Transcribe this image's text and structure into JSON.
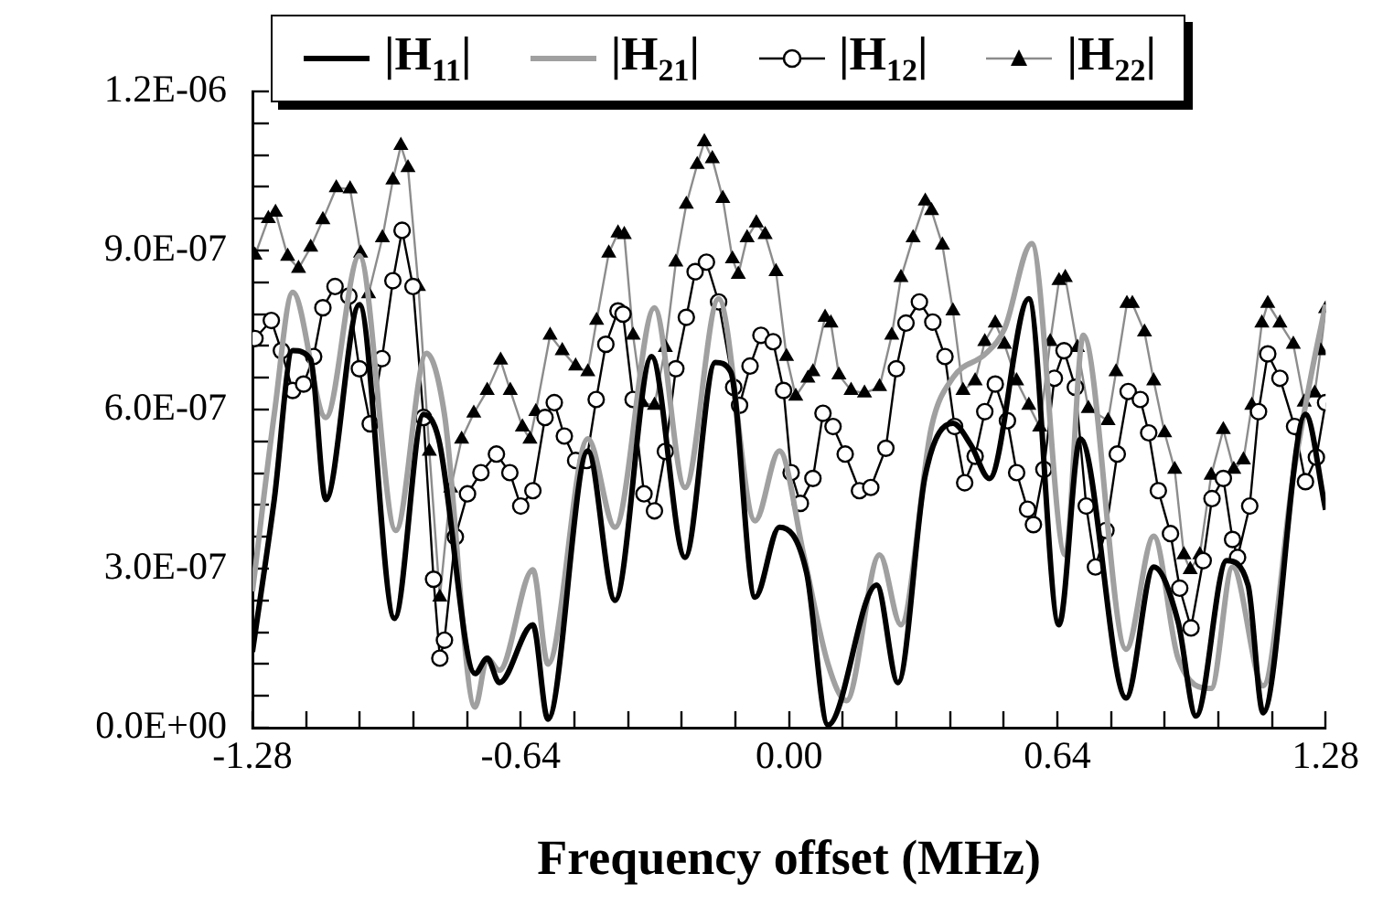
{
  "chart_data": {
    "type": "line",
    "xlabel": "Frequency offset (MHz)",
    "legend": "top",
    "grid": false,
    "xlim": [
      -1.28,
      1.28
    ],
    "xticks": [
      -1.28,
      {
        "value": -1.152,
        "label": null
      },
      {
        "value": -1.024,
        "label": null
      },
      {
        "value": -0.896,
        "label": null
      },
      {
        "value": -0.768,
        "label": null
      },
      -0.64,
      {
        "value": -0.512,
        "label": null
      },
      {
        "value": -0.384,
        "label": null
      },
      {
        "value": -0.256,
        "label": null
      },
      {
        "value": -0.128,
        "label": null
      },
      {
        "value": 0,
        "label": "0.00"
      },
      {
        "value": 0.128,
        "label": null
      },
      {
        "value": 0.256,
        "label": null
      },
      {
        "value": 0.384,
        "label": null
      },
      {
        "value": 0.512,
        "label": null
      },
      0.64,
      {
        "value": 0.768,
        "label": null
      },
      {
        "value": 0.896,
        "label": null
      },
      {
        "value": 1.024,
        "label": null
      },
      {
        "value": 1.152,
        "label": null
      },
      1.28
    ],
    "ylim": [
      0,
      1.2e-06
    ],
    "yticks": [
      {
        "value": 0,
        "label": "0.0E+00"
      },
      {
        "value": 6e-08,
        "label": null
      },
      {
        "value": 1.2e-07,
        "label": null
      },
      {
        "value": 1.8e-07,
        "label": null
      },
      {
        "value": 2.4e-07,
        "label": null
      },
      {
        "value": 3e-07,
        "label": "3.0E-07"
      },
      {
        "value": 3.6e-07,
        "label": null
      },
      {
        "value": 4.2e-07,
        "label": null
      },
      {
        "value": 4.8e-07,
        "label": null
      },
      {
        "value": 5.4e-07,
        "label": null
      },
      {
        "value": 6e-07,
        "label": "6.0E-07"
      },
      {
        "value": 6.6e-07,
        "label": null
      },
      {
        "value": 7.2e-07,
        "label": null
      },
      {
        "value": 7.8e-07,
        "label": null
      },
      {
        "value": 8.4e-07,
        "label": null
      },
      {
        "value": 9e-07,
        "label": "9.0E-07"
      },
      {
        "value": 9.6e-07,
        "label": null
      },
      {
        "value": 1.02e-06,
        "label": null
      },
      {
        "value": 1.08e-06,
        "label": null
      },
      {
        "value": 1.14e-06,
        "label": null
      },
      {
        "value": 1.2e-06,
        "label": "1.2E-06"
      }
    ],
    "series": [
      {
        "name": "|H$_{11}$|",
        "color": "#000000",
        "marker": "none",
        "x": [
          -1.28,
          -1.228,
          -1.184,
          -1.141,
          -1.105,
          -1.025,
          -0.941,
          -0.872,
          -0.836,
          -0.749,
          -0.72,
          -0.691,
          -0.611,
          -0.575,
          -0.48,
          -0.415,
          -0.328,
          -0.248,
          -0.176,
          -0.139,
          -0.081,
          -0.023,
          0.042,
          0.093,
          0.209,
          0.26,
          0.325,
          0.391,
          0.434,
          0.478,
          0.572,
          0.644,
          0.695,
          0.804,
          0.87,
          0.928,
          0.971,
          1.044,
          1.095,
          1.131,
          1.232,
          1.28
        ],
        "values": [
          1.43e-07,
          4.3e-07,
          7.11e-07,
          6.94e-07,
          4.3e-07,
          7.98e-07,
          2.06e-07,
          5.91e-07,
          5.45e-07,
          1.02e-07,
          1.31e-07,
          8.5e-08,
          1.94e-07,
          1.6e-08,
          5.22e-07,
          2.4e-07,
          7e-07,
          3.21e-07,
          6.89e-07,
          6.71e-07,
          2.46e-07,
          3.78e-07,
          2.92e-07,
          5e-09,
          2.69e-07,
          8.5e-08,
          4.76e-07,
          5.74e-07,
          5.33e-07,
          4.7e-07,
          8.09e-07,
          1.94e-07,
          5.45e-07,
          5.6e-08,
          3.03e-07,
          2e-07,
          2.2e-08,
          3.15e-07,
          2.69e-07,
          2.8e-08,
          5.91e-07,
          4.11e-07
        ]
      },
      {
        "name": "|H$_{21}$|",
        "color": "#a0a0a0",
        "marker": "none",
        "x": [
          -1.28,
          -1.228,
          -1.184,
          -1.105,
          -1.025,
          -0.938,
          -0.865,
          -0.822,
          -0.749,
          -0.72,
          -0.691,
          -0.611,
          -0.575,
          -0.48,
          -0.415,
          -0.321,
          -0.248,
          -0.168,
          -0.081,
          -0.023,
          0.035,
          0.093,
          0.137,
          0.216,
          0.267,
          0.34,
          0.391,
          0.47,
          0.514,
          0.579,
          0.659,
          0.702,
          0.804,
          0.87,
          0.928,
          1.007,
          1.058,
          1.131,
          1.203,
          1.247,
          1.28
        ],
        "values": [
          2.57e-07,
          5.91e-07,
          8.21e-07,
          5.85e-07,
          8.9e-07,
          3.72e-07,
          7.06e-07,
          5.91e-07,
          3.9e-08,
          1.31e-07,
          1.08e-07,
          2.98e-07,
          1.2e-07,
          5.45e-07,
          3.78e-07,
          7.92e-07,
          4.53e-07,
          8.09e-07,
          3.9e-07,
          5.22e-07,
          3.26e-07,
          1.2e-07,
          5.1e-08,
          3.26e-07,
          1.94e-07,
          5.68e-07,
          6.6e-07,
          7.06e-07,
          7.52e-07,
          9.13e-07,
          3.26e-07,
          7.4e-07,
          1.48e-07,
          3.61e-07,
          1.31e-07,
          7.4e-08,
          3.03e-07,
          7.9e-08,
          4.76e-07,
          6.71e-07,
          7.98e-07
        ]
      },
      {
        "name": "|H$_{12}$|",
        "color": "#000000",
        "marker": "circle",
        "x": [
          -1.274,
          -1.235,
          -1.211,
          -1.184,
          -1.158,
          -1.134,
          -1.112,
          -1.083,
          -1.05,
          -1.025,
          -0.999,
          -0.971,
          -0.945,
          -0.923,
          -0.897,
          -0.872,
          -0.848,
          -0.833,
          -0.822,
          -0.796,
          -0.767,
          -0.735,
          -0.698,
          -0.666,
          -0.64,
          -0.611,
          -0.582,
          -0.56,
          -0.536,
          -0.509,
          -0.483,
          -0.46,
          -0.437,
          -0.408,
          -0.396,
          -0.372,
          -0.346,
          -0.321,
          -0.295,
          -0.27,
          -0.245,
          -0.224,
          -0.197,
          -0.168,
          -0.132,
          -0.118,
          -0.093,
          -0.067,
          -0.038,
          -0.013,
          0.005,
          0.027,
          0.057,
          0.081,
          0.105,
          0.134,
          0.168,
          0.195,
          0.231,
          0.256,
          0.279,
          0.311,
          0.343,
          0.372,
          0.395,
          0.419,
          0.444,
          0.467,
          0.492,
          0.521,
          0.543,
          0.569,
          0.583,
          0.608,
          0.633,
          0.656,
          0.683,
          0.709,
          0.731,
          0.756,
          0.783,
          0.809,
          0.838,
          0.858,
          0.881,
          0.91,
          0.932,
          0.959,
          0.988,
          1.009,
          1.036,
          1.058,
          1.07,
          1.099,
          1.12,
          1.142,
          1.171,
          1.206,
          1.232,
          1.258,
          1.28
        ],
        "values": [
          7.34e-07,
          7.68e-07,
          7.11e-07,
          6.36e-07,
          6.48e-07,
          7e-07,
          7.92e-07,
          8.32e-07,
          8.14e-07,
          6.77e-07,
          5.73e-07,
          6.96e-07,
          8.43e-07,
          9.38e-07,
          8.32e-07,
          5.85e-07,
          2.8e-07,
          1.31e-07,
          1.65e-07,
          3.6e-07,
          4.41e-07,
          4.81e-07,
          5.16e-07,
          4.81e-07,
          4.18e-07,
          4.47e-07,
          5.85e-07,
          6.13e-07,
          5.5e-07,
          5.04e-07,
          5.04e-07,
          6.19e-07,
          7.23e-07,
          7.86e-07,
          7.8e-07,
          6.19e-07,
          4.41e-07,
          4.09e-07,
          5.21e-07,
          6.77e-07,
          7.74e-07,
          8.6e-07,
          8.78e-07,
          8.03e-07,
          6.42e-07,
          6.08e-07,
          6.82e-07,
          7.4e-07,
          7.28e-07,
          6.36e-07,
          4.81e-07,
          4.23e-07,
          4.7e-07,
          5.93e-07,
          5.68e-07,
          5.16e-07,
          4.47e-07,
          4.53e-07,
          5.27e-07,
          6.77e-07,
          7.63e-07,
          8.03e-07,
          7.65e-07,
          7e-07,
          5.68e-07,
          4.62e-07,
          5.12e-07,
          5.96e-07,
          6.48e-07,
          5.79e-07,
          4.81e-07,
          4.12e-07,
          3.83e-07,
          4.87e-07,
          6.59e-07,
          7.11e-07,
          6.42e-07,
          4.18e-07,
          3.03e-07,
          3.72e-07,
          5.16e-07,
          6.34e-07,
          6.19e-07,
          5.56e-07,
          4.47e-07,
          3.66e-07,
          2.63e-07,
          1.88e-07,
          3.15e-07,
          4.32e-07,
          4.7e-07,
          3.55e-07,
          3.21e-07,
          4.18e-07,
          5.96e-07,
          7.05e-07,
          6.59e-07,
          5.68e-07,
          4.64e-07,
          5.1e-07,
          6.13e-07
        ]
      },
      {
        "name": "|H$_{22}$|",
        "color": "#000000",
        "marker": "triangle",
        "x": [
          -1.274,
          -1.242,
          -1.225,
          -1.196,
          -1.17,
          -1.141,
          -1.112,
          -1.08,
          -1.047,
          -1.022,
          -1.003,
          -0.97,
          -0.945,
          -0.926,
          -0.909,
          -0.884,
          -0.858,
          -0.833,
          -0.807,
          -0.781,
          -0.752,
          -0.72,
          -0.688,
          -0.665,
          -0.636,
          -0.618,
          -0.604,
          -0.57,
          -0.541,
          -0.509,
          -0.48,
          -0.459,
          -0.43,
          -0.408,
          -0.393,
          -0.372,
          -0.35,
          -0.321,
          -0.295,
          -0.27,
          -0.245,
          -0.219,
          -0.202,
          -0.183,
          -0.158,
          -0.135,
          -0.121,
          -0.1,
          -0.078,
          -0.057,
          -0.031,
          -0.006,
          0.016,
          0.045,
          0.057,
          0.086,
          0.1,
          0.119,
          0.148,
          0.18,
          0.216,
          0.245,
          0.267,
          0.296,
          0.325,
          0.34,
          0.366,
          0.391,
          0.415,
          0.444,
          0.467,
          0.492,
          0.514,
          0.543,
          0.572,
          0.598,
          0.623,
          0.644,
          0.659,
          0.688,
          0.714,
          0.761,
          0.78,
          0.806,
          0.819,
          0.848,
          0.87,
          0.896,
          0.92,
          0.942,
          0.957,
          0.98,
          1.007,
          1.036,
          1.061,
          1.084,
          1.104,
          1.128,
          1.142,
          1.171,
          1.203,
          1.229,
          1.254,
          1.268,
          1.28
        ],
        "values": [
          8.91e-07,
          9.6e-07,
          9.72e-07,
          8.89e-07,
          8.66e-07,
          9.06e-07,
          9.58e-07,
          1.018e-06,
          1.016e-06,
          8.95e-07,
          8.18e-07,
          9.24e-07,
          1.033e-06,
          1.098e-06,
          1.056e-06,
          8.32e-07,
          5.21e-07,
          2.46e-07,
          4.52e-07,
          5.44e-07,
          5.93e-07,
          6.36e-07,
          6.93e-07,
          6.36e-07,
          5.67e-07,
          5.44e-07,
          5.96e-07,
          7.4e-07,
          7.11e-07,
          6.82e-07,
          6.71e-07,
          7.68e-07,
          8.95e-07,
          9.33e-07,
          9.3e-07,
          7.4e-07,
          6.13e-07,
          6.08e-07,
          7.17e-07,
          8.78e-07,
          9.87e-07,
          1.062e-06,
          1.105e-06,
          1.073e-06,
          9.98e-07,
          8.84e-07,
          8.55e-07,
          9.24e-07,
          9.52e-07,
          9.3e-07,
          8.6e-07,
          7e-07,
          6.25e-07,
          6.59e-07,
          6.71e-07,
          7.74e-07,
          7.63e-07,
          6.65e-07,
          6.36e-07,
          6.31e-07,
          6.43e-07,
          7.4e-07,
          8.49e-07,
          9.24e-07,
          9.93e-07,
          9.75e-07,
          9.1e-07,
          7.86e-07,
          6.36e-07,
          6.54e-07,
          7.28e-07,
          7.63e-07,
          7.23e-07,
          6.54e-07,
          6.08e-07,
          5.67e-07,
          7.28e-07,
          8.43e-07,
          8.49e-07,
          7.17e-07,
          6.02e-07,
          5.79e-07,
          6.71e-07,
          8e-07,
          8e-07,
          7.46e-07,
          6.54e-07,
          5.56e-07,
          4.87e-07,
          3.26e-07,
          2.98e-07,
          3.26e-07,
          4.76e-07,
          5.62e-07,
          4.87e-07,
          5.05e-07,
          6.08e-07,
          7.63e-07,
          8e-07,
          7.63e-07,
          7.23e-07,
          6.14e-07,
          6.31e-07,
          7.11e-07,
          7.9e-07
        ]
      }
    ]
  }
}
